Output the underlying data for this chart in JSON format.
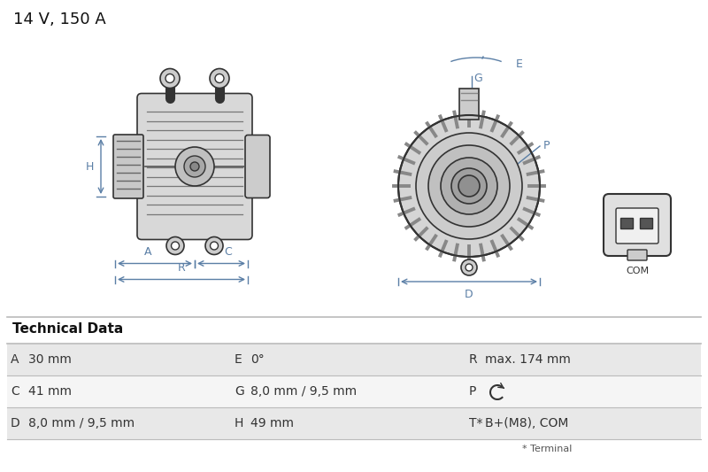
{
  "title": "14 V, 150 A",
  "title_fontsize": 13,
  "bg_color": "#ffffff",
  "drawing_color": "#5b7fa6",
  "line_color": "#333333",
  "tech_header": "Technical Data",
  "table_rows": [
    [
      "A",
      "30 mm",
      "E",
      "0°",
      "R",
      "max. 174 mm"
    ],
    [
      "C",
      "41 mm",
      "G",
      "8,0 mm / 9,5 mm",
      "P",
      "rot_arrow"
    ],
    [
      "D",
      "8,0 mm / 9,5 mm",
      "H",
      "49 mm",
      "T*",
      "B+(M8), COM"
    ]
  ],
  "footer": "* Terminal",
  "row_bg_odd": "#e8e8e8",
  "row_bg_even": "#f5f5f5"
}
